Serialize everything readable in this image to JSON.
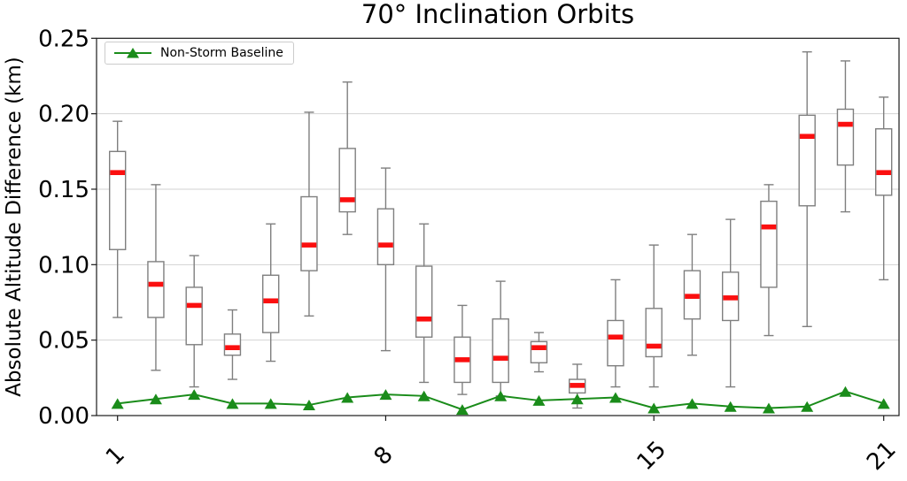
{
  "chart_data": {
    "type": "boxplot",
    "title": "70° Inclination Orbits",
    "xlabel": "",
    "ylabel": "Absolute Altitude Difference (km)",
    "ylim": [
      0,
      0.25
    ],
    "grid": "horizontal",
    "legend_position": "upper left",
    "y_ticks": [
      "0.00",
      "0.05",
      "0.10",
      "0.15",
      "0.20",
      "0.25"
    ],
    "x_ticks": [
      {
        "pos": 1,
        "label": "1"
      },
      {
        "pos": 8,
        "label": "8"
      },
      {
        "pos": 15,
        "label": "15"
      },
      {
        "pos": 21,
        "label": "21"
      }
    ],
    "categories": [
      1,
      2,
      3,
      4,
      5,
      6,
      7,
      8,
      9,
      10,
      11,
      12,
      13,
      14,
      15,
      16,
      17,
      18,
      19,
      20,
      21
    ],
    "boxes": [
      {
        "x": 1,
        "lo": 0.065,
        "q1": 0.11,
        "med": 0.161,
        "q3": 0.175,
        "hi": 0.195
      },
      {
        "x": 2,
        "lo": 0.03,
        "q1": 0.065,
        "med": 0.087,
        "q3": 0.102,
        "hi": 0.153
      },
      {
        "x": 3,
        "lo": 0.019,
        "q1": 0.047,
        "med": 0.073,
        "q3": 0.085,
        "hi": 0.106
      },
      {
        "x": 4,
        "lo": 0.024,
        "q1": 0.04,
        "med": 0.045,
        "q3": 0.054,
        "hi": 0.07
      },
      {
        "x": 5,
        "lo": 0.036,
        "q1": 0.055,
        "med": 0.076,
        "q3": 0.093,
        "hi": 0.127
      },
      {
        "x": 6,
        "lo": 0.066,
        "q1": 0.096,
        "med": 0.113,
        "q3": 0.145,
        "hi": 0.201
      },
      {
        "x": 7,
        "lo": 0.12,
        "q1": 0.135,
        "med": 0.143,
        "q3": 0.177,
        "hi": 0.221
      },
      {
        "x": 8,
        "lo": 0.043,
        "q1": 0.1,
        "med": 0.113,
        "q3": 0.137,
        "hi": 0.164
      },
      {
        "x": 9,
        "lo": 0.022,
        "q1": 0.052,
        "med": 0.064,
        "q3": 0.099,
        "hi": 0.127
      },
      {
        "x": 10,
        "lo": 0.014,
        "q1": 0.022,
        "med": 0.037,
        "q3": 0.052,
        "hi": 0.073
      },
      {
        "x": 11,
        "lo": 0.013,
        "q1": 0.022,
        "med": 0.038,
        "q3": 0.064,
        "hi": 0.089
      },
      {
        "x": 12,
        "lo": 0.029,
        "q1": 0.035,
        "med": 0.045,
        "q3": 0.049,
        "hi": 0.055
      },
      {
        "x": 13,
        "lo": 0.005,
        "q1": 0.015,
        "med": 0.02,
        "q3": 0.024,
        "hi": 0.034
      },
      {
        "x": 14,
        "lo": 0.019,
        "q1": 0.033,
        "med": 0.052,
        "q3": 0.063,
        "hi": 0.09
      },
      {
        "x": 15,
        "lo": 0.019,
        "q1": 0.039,
        "med": 0.046,
        "q3": 0.071,
        "hi": 0.113
      },
      {
        "x": 16,
        "lo": 0.04,
        "q1": 0.064,
        "med": 0.079,
        "q3": 0.096,
        "hi": 0.12
      },
      {
        "x": 17,
        "lo": 0.019,
        "q1": 0.063,
        "med": 0.078,
        "q3": 0.095,
        "hi": 0.13
      },
      {
        "x": 18,
        "lo": 0.053,
        "q1": 0.085,
        "med": 0.125,
        "q3": 0.142,
        "hi": 0.153
      },
      {
        "x": 19,
        "lo": 0.059,
        "q1": 0.139,
        "med": 0.185,
        "q3": 0.199,
        "hi": 0.241
      },
      {
        "x": 20,
        "lo": 0.135,
        "q1": 0.166,
        "med": 0.193,
        "q3": 0.203,
        "hi": 0.235
      },
      {
        "x": 21,
        "lo": 0.09,
        "q1": 0.146,
        "med": 0.161,
        "q3": 0.19,
        "hi": 0.211
      }
    ],
    "series": [
      {
        "name": "Non-Storm Baseline",
        "type": "line",
        "marker": "triangle-up",
        "values": [
          0.008,
          0.011,
          0.014,
          0.008,
          0.008,
          0.007,
          0.012,
          0.014,
          0.013,
          0.004,
          0.013,
          0.01,
          0.011,
          0.012,
          0.005,
          0.008,
          0.006,
          0.005,
          0.006,
          0.016,
          0.008
        ]
      }
    ],
    "colors": {
      "baseline": "#1a8c1a",
      "median": "#fb0f0f",
      "box_edge": "#7f7f7f",
      "whisker": "#7f7f7f",
      "grid": "#d2d2d2",
      "spine": "#1a1a1a",
      "box_fill": "#ffffff"
    }
  }
}
